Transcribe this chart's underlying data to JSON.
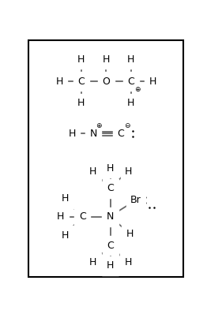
{
  "line_color": "#666666",
  "text_color": "#000000",
  "fontsize": 9,
  "fs_charge": 6.5,
  "fs_dots": 5,
  "figsize": [
    2.62,
    3.98
  ],
  "dpi": 100,
  "xlim": [
    0,
    262
  ],
  "ylim": [
    0,
    398
  ]
}
